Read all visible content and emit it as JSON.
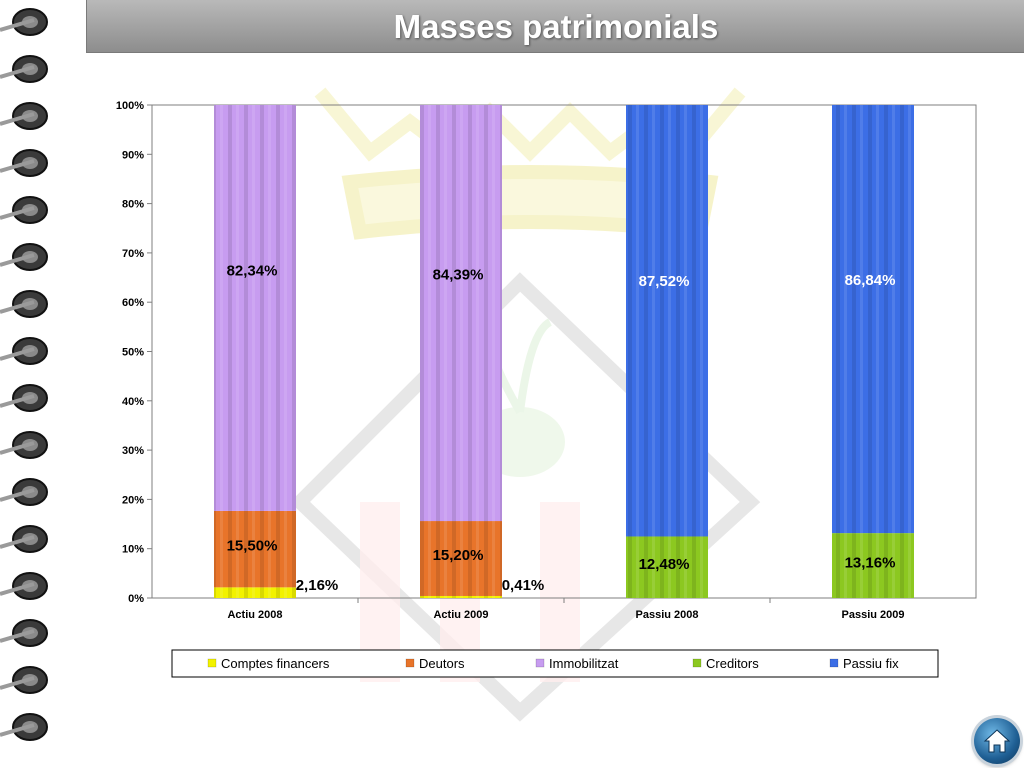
{
  "page": {
    "title": "Masses patrimonials"
  },
  "icons": {
    "home": "home-icon"
  },
  "colors": {
    "comptes_financers": "#f2f200",
    "deutors": "#e8742a",
    "immobilitzat": "#c79cf0",
    "creditors": "#8cc820",
    "passiu_fix": "#3c6ee6"
  },
  "chart_data": {
    "type": "bar",
    "stacked": true,
    "percent_stacked": true,
    "title": "",
    "xlabel": "",
    "ylabel": "",
    "ylim": [
      0,
      100
    ],
    "yticks": [
      "0%",
      "10%",
      "20%",
      "30%",
      "40%",
      "50%",
      "60%",
      "70%",
      "80%",
      "90%",
      "100%"
    ],
    "categories": [
      "Actiu 2008",
      "Actiu 2009",
      "Passiu 2008",
      "Passiu 2009"
    ],
    "legend_position": "bottom",
    "series": [
      {
        "name": "Comptes financers",
        "color": "#f2f200",
        "values": [
          2.16,
          0.41,
          0,
          0
        ],
        "labels": [
          "2,16%",
          "0,41%",
          "",
          ""
        ]
      },
      {
        "name": "Deutors",
        "color": "#e8742a",
        "values": [
          15.5,
          15.2,
          0,
          0
        ],
        "labels": [
          "15,50%",
          "15,20%",
          "",
          ""
        ]
      },
      {
        "name": "Immobilitzat",
        "color": "#c79cf0",
        "values": [
          82.34,
          84.39,
          0,
          0
        ],
        "labels": [
          "82,34%",
          "84,39%",
          "",
          ""
        ]
      },
      {
        "name": "Creditors",
        "color": "#8cc820",
        "values": [
          0,
          0,
          12.48,
          13.16
        ],
        "labels": [
          "",
          "",
          "12,48%",
          "13,16%"
        ]
      },
      {
        "name": "Passiu fix",
        "color": "#3c6ee6",
        "values": [
          0,
          0,
          87.52,
          86.84
        ],
        "labels": [
          "",
          "",
          "87,52%",
          "86,84%"
        ]
      }
    ]
  }
}
